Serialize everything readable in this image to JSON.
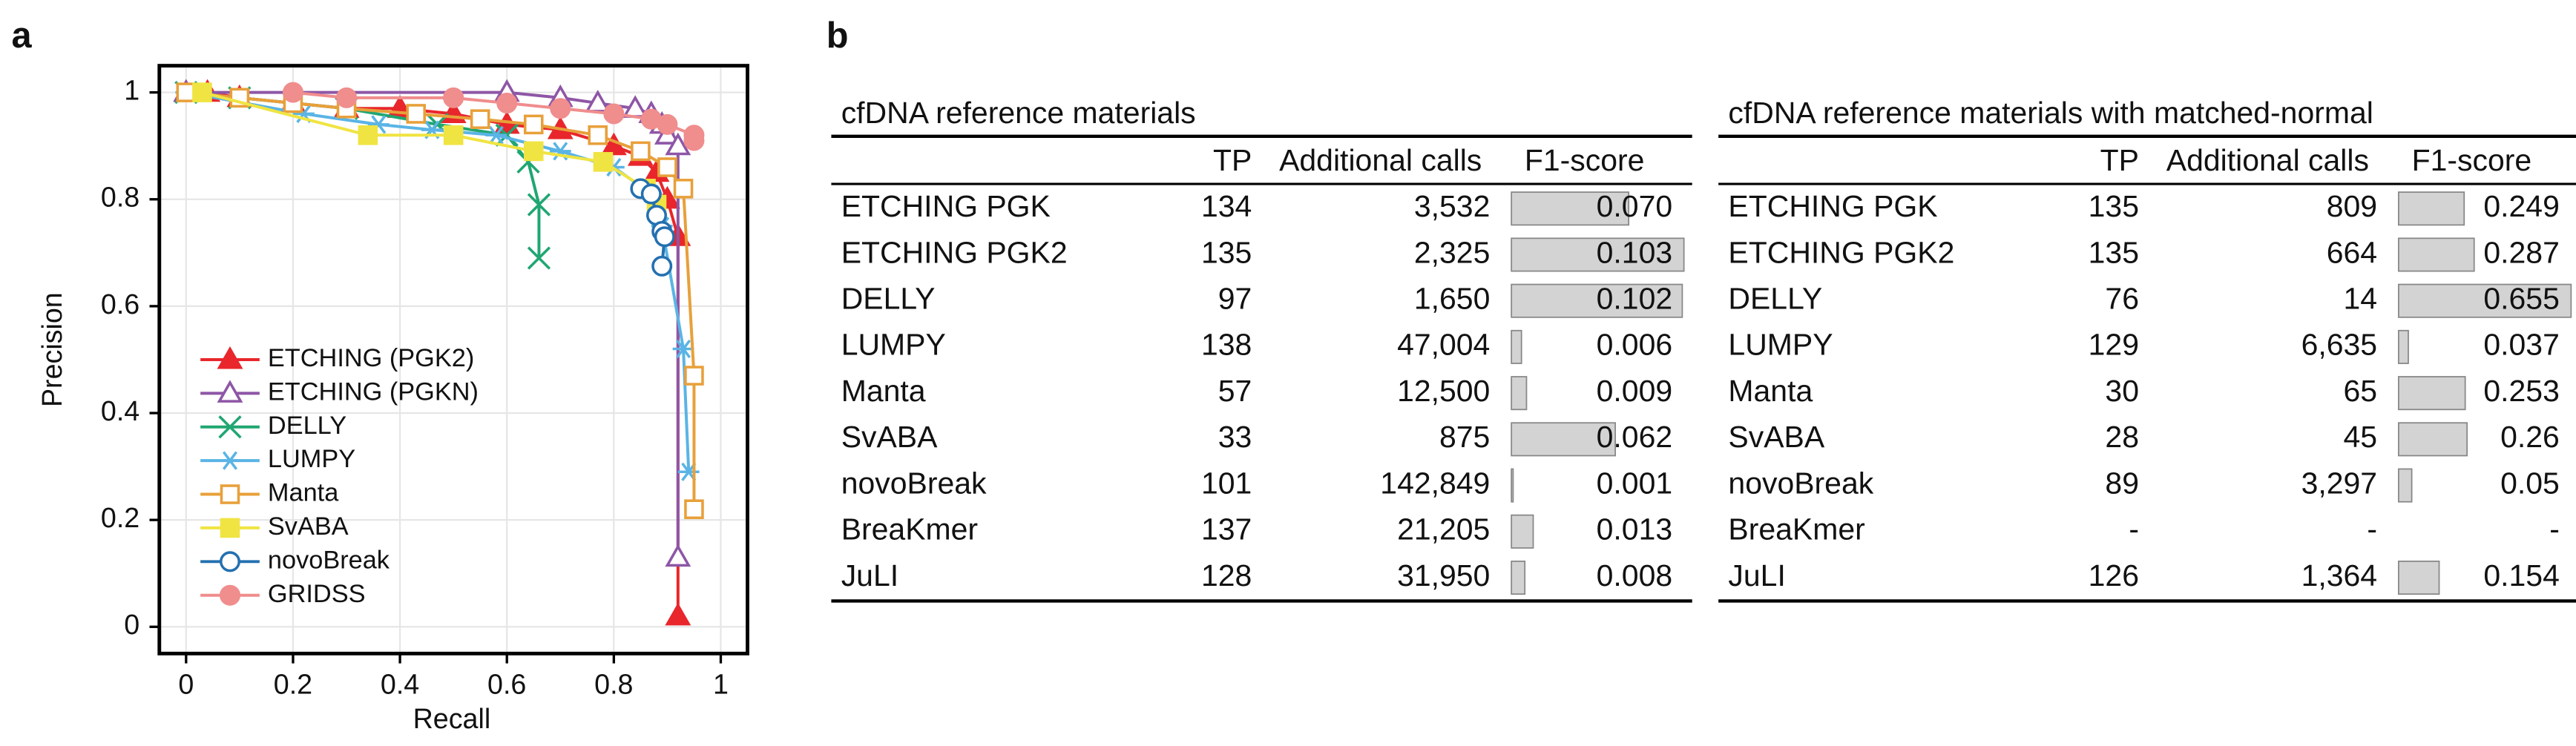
{
  "panel_labels": [
    "a",
    "b"
  ],
  "chart_data": {
    "type": "line",
    "xlabel": "Recall",
    "ylabel": "Precision",
    "xlim": [
      -0.05,
      1.05
    ],
    "ylim": [
      -0.05,
      1.05
    ],
    "xticks": [
      0,
      0.2,
      0.4,
      0.6,
      0.8,
      1
    ],
    "yticks": [
      0,
      0.2,
      0.4,
      0.6,
      0.8,
      1
    ],
    "grid": true,
    "series": [
      {
        "name": "ETCHING (PGK2)",
        "color": "#e8262b",
        "marker": "triangle",
        "x": [
          0,
          0.04,
          0.1,
          0.2,
          0.3,
          0.4,
          0.5,
          0.6,
          0.7,
          0.8,
          0.85,
          0.88,
          0.9,
          0.92,
          0.92
        ],
        "values": [
          1,
          1,
          0.99,
          0.98,
          0.97,
          0.97,
          0.96,
          0.94,
          0.93,
          0.9,
          0.88,
          0.85,
          0.8,
          0.73,
          0.02
        ]
      },
      {
        "name": "ETCHING (PGKN)",
        "color": "#8e56a6",
        "marker": "triangle-open",
        "x": [
          0,
          0.6,
          0.7,
          0.77,
          0.84,
          0.87,
          0.89,
          0.9,
          0.92,
          0.92
        ],
        "values": [
          1,
          1,
          0.99,
          0.98,
          0.97,
          0.96,
          0.94,
          0.92,
          0.9,
          0.13
        ]
      },
      {
        "name": "DELLY",
        "color": "#20a672",
        "marker": "x",
        "x": [
          0,
          0.1,
          0.3,
          0.47,
          0.6,
          0.64,
          0.66,
          0.66
        ],
        "values": [
          1,
          0.99,
          0.97,
          0.94,
          0.92,
          0.87,
          0.79,
          0.69
        ]
      },
      {
        "name": "LUMPY",
        "color": "#5ab4e5",
        "marker": "star",
        "x": [
          0,
          0.22,
          0.36,
          0.46,
          0.58,
          0.7,
          0.8,
          0.87,
          0.89,
          0.93,
          0.94
        ],
        "values": [
          1,
          0.96,
          0.94,
          0.93,
          0.92,
          0.89,
          0.86,
          0.81,
          0.75,
          0.52,
          0.29
        ]
      },
      {
        "name": "Manta",
        "color": "#e8a03a",
        "marker": "square-open",
        "x": [
          0,
          0.1,
          0.2,
          0.3,
          0.43,
          0.55,
          0.65,
          0.77,
          0.85,
          0.9,
          0.93,
          0.95,
          0.95
        ],
        "values": [
          1,
          0.99,
          0.98,
          0.97,
          0.96,
          0.95,
          0.94,
          0.92,
          0.89,
          0.86,
          0.82,
          0.47,
          0.22
        ]
      },
      {
        "name": "SvABA",
        "color": "#f0e442",
        "marker": "square",
        "x": [
          0.03,
          0.34,
          0.5,
          0.65,
          0.78,
          0.86,
          0.88
        ],
        "values": [
          1,
          0.92,
          0.92,
          0.89,
          0.87,
          0.82,
          0.79
        ]
      },
      {
        "name": "novoBreak",
        "color": "#2470b0",
        "marker": "circle-open",
        "x": [
          0.85,
          0.87,
          0.88,
          0.89,
          0.895,
          0.89
        ],
        "values": [
          0.82,
          0.81,
          0.77,
          0.74,
          0.73,
          0.675
        ]
      },
      {
        "name": "GRIDSS",
        "color": "#f08d8d",
        "marker": "circle",
        "x": [
          0.2,
          0.3,
          0.5,
          0.6,
          0.7,
          0.8,
          0.87,
          0.9,
          0.95,
          0.95
        ],
        "values": [
          1,
          0.99,
          0.99,
          0.98,
          0.97,
          0.96,
          0.95,
          0.94,
          0.92,
          0.91
        ]
      }
    ]
  },
  "tables": [
    {
      "title": "cfDNA reference materials",
      "columns": [
        "TP",
        "Additional calls",
        "F1-score"
      ],
      "rows": [
        [
          "ETCHING PGK",
          134,
          "3,532",
          {
            "value": 0.07,
            "label": "0.070"
          }
        ],
        [
          "ETCHING PGK2",
          135,
          "2,325",
          0.103
        ],
        [
          "DELLY",
          97,
          "1,650",
          0.102
        ],
        [
          "LUMPY",
          138,
          "47,004",
          0.006
        ],
        [
          "Manta",
          57,
          "12,500",
          0.009
        ],
        [
          "SvABA",
          33,
          "875",
          0.062
        ],
        [
          "novoBreak",
          101,
          "142,849",
          0.001
        ],
        [
          "BreaKmer",
          137,
          "21,205",
          0.013
        ],
        [
          "JuLI",
          128,
          "31,950",
          0.008
        ]
      ]
    },
    {
      "title": "cfDNA reference materials with matched-normal",
      "columns": [
        "TP",
        "Additional calls",
        "F1-score"
      ],
      "rows": [
        [
          "ETCHING PGK",
          135,
          "809",
          0.249
        ],
        [
          "ETCHING PGK2",
          135,
          "664",
          0.287
        ],
        [
          "DELLY",
          76,
          "14",
          0.655
        ],
        [
          "LUMPY",
          129,
          "6,635",
          0.037
        ],
        [
          "Manta",
          30,
          "65",
          0.253
        ],
        [
          "SvABA",
          28,
          "45",
          0.26
        ],
        [
          "novoBreak",
          89,
          "3,297",
          0.05
        ],
        [
          "BreaKmer",
          "-",
          "-",
          "-"
        ],
        [
          "JuLI",
          126,
          "1,364",
          0.154
        ]
      ]
    }
  ]
}
